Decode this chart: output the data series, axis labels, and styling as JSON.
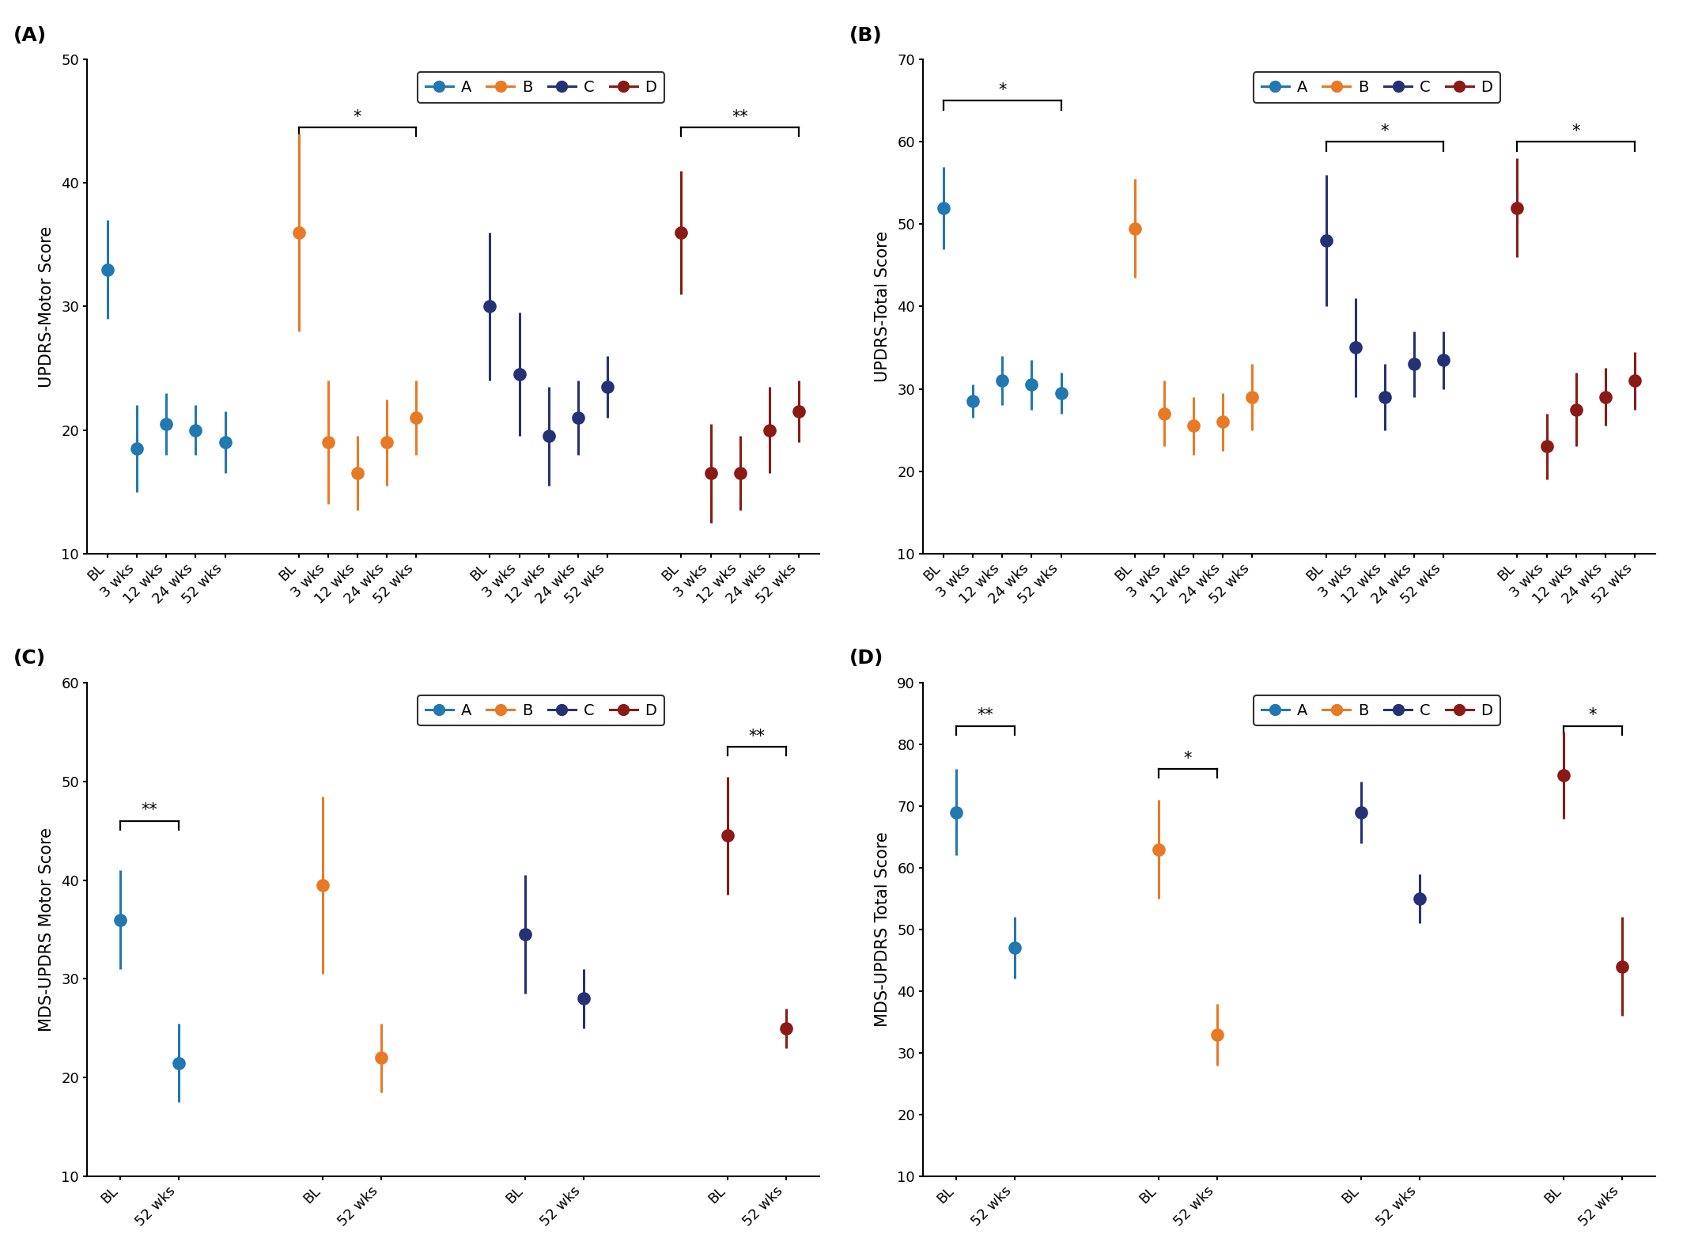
{
  "colors": {
    "A": "#2278b0",
    "B": "#e87a26",
    "C": "#263175",
    "D": "#8b1a14"
  },
  "panel_A": {
    "title": "(A)",
    "ylabel": "UPDRS-Motor Score",
    "ylim": [
      10,
      50
    ],
    "yticks": [
      10,
      20,
      30,
      40,
      50
    ],
    "groups": [
      "A",
      "B",
      "C",
      "D"
    ],
    "xticklabels": [
      "BL",
      "3 wks",
      "12 wks",
      "24 wks",
      "52 wks"
    ],
    "data": {
      "A": {
        "mean": [
          33.0,
          18.5,
          20.5,
          20.0,
          19.0
        ],
        "err": [
          4.0,
          3.5,
          2.5,
          2.0,
          2.5
        ]
      },
      "B": {
        "mean": [
          36.0,
          19.0,
          16.5,
          19.0,
          21.0
        ],
        "err": [
          8.0,
          5.0,
          3.0,
          3.5,
          3.0
        ]
      },
      "C": {
        "mean": [
          30.0,
          24.5,
          19.5,
          21.0,
          23.5
        ],
        "err": [
          6.0,
          5.0,
          4.0,
          3.0,
          2.5
        ]
      },
      "D": {
        "mean": [
          36.0,
          16.5,
          16.5,
          20.0,
          21.5
        ],
        "err": [
          5.0,
          4.0,
          3.0,
          3.5,
          2.5
        ]
      }
    },
    "sig_brackets": [
      {
        "g": "B",
        "i1": 0,
        "i2": 4,
        "label": "*",
        "y": 44.5
      },
      {
        "g": "D",
        "i1": 0,
        "i2": 4,
        "label": "**",
        "y": 44.5
      }
    ]
  },
  "panel_B": {
    "title": "(B)",
    "ylabel": "UPDRS-Total Score",
    "ylim": [
      10,
      70
    ],
    "yticks": [
      10,
      20,
      30,
      40,
      50,
      60,
      70
    ],
    "groups": [
      "A",
      "B",
      "C",
      "D"
    ],
    "xticklabels": [
      "BL",
      "3 wks",
      "12 wks",
      "24 wks",
      "52 wks"
    ],
    "data": {
      "A": {
        "mean": [
          52.0,
          28.5,
          31.0,
          30.5,
          29.5
        ],
        "err": [
          5.0,
          2.0,
          3.0,
          3.0,
          2.5
        ]
      },
      "B": {
        "mean": [
          49.5,
          27.0,
          25.5,
          26.0,
          29.0
        ],
        "err": [
          6.0,
          4.0,
          3.5,
          3.5,
          4.0
        ]
      },
      "C": {
        "mean": [
          48.0,
          35.0,
          29.0,
          33.0,
          33.5
        ],
        "err": [
          8.0,
          6.0,
          4.0,
          4.0,
          3.5
        ]
      },
      "D": {
        "mean": [
          52.0,
          23.0,
          27.5,
          29.0,
          31.0
        ],
        "err": [
          6.0,
          4.0,
          4.5,
          3.5,
          3.5
        ]
      }
    },
    "sig_brackets": [
      {
        "g": "A",
        "i1": 0,
        "i2": 4,
        "label": "*",
        "y": 65.0
      },
      {
        "g": "C",
        "i1": 0,
        "i2": 4,
        "label": "*",
        "y": 60.0
      },
      {
        "g": "D",
        "i1": 0,
        "i2": 4,
        "label": "*",
        "y": 60.0
      }
    ]
  },
  "panel_C": {
    "title": "(C)",
    "ylabel": "MDS-UPDRS Motor Score",
    "ylim": [
      10,
      60
    ],
    "yticks": [
      10,
      20,
      30,
      40,
      50,
      60
    ],
    "groups": [
      "A",
      "B",
      "C",
      "D"
    ],
    "xticklabels": [
      "BL",
      "52 wks"
    ],
    "data": {
      "A": {
        "mean": [
          36.0,
          21.5
        ],
        "err": [
          5.0,
          4.0
        ]
      },
      "B": {
        "mean": [
          39.5,
          22.0
        ],
        "err": [
          9.0,
          3.5
        ]
      },
      "C": {
        "mean": [
          34.5,
          28.0
        ],
        "err": [
          6.0,
          3.0
        ]
      },
      "D": {
        "mean": [
          44.5,
          25.0
        ],
        "err": [
          6.0,
          2.0
        ]
      }
    },
    "sig_brackets": [
      {
        "g": "A",
        "i1": 0,
        "i2": 1,
        "label": "**",
        "y": 46.0
      },
      {
        "g": "D",
        "i1": 0,
        "i2": 1,
        "label": "**",
        "y": 53.5
      }
    ]
  },
  "panel_D": {
    "title": "(D)",
    "ylabel": "MDS-UPDRS Total Score",
    "ylim": [
      10,
      90
    ],
    "yticks": [
      10,
      20,
      30,
      40,
      50,
      60,
      70,
      80,
      90
    ],
    "groups": [
      "A",
      "B",
      "C",
      "D"
    ],
    "xticklabels": [
      "BL",
      "52 wks"
    ],
    "data": {
      "A": {
        "mean": [
          69.0,
          47.0
        ],
        "err": [
          7.0,
          5.0
        ]
      },
      "B": {
        "mean": [
          63.0,
          33.0
        ],
        "err": [
          8.0,
          5.0
        ]
      },
      "C": {
        "mean": [
          69.0,
          55.0
        ],
        "err": [
          5.0,
          4.0
        ]
      },
      "D": {
        "mean": [
          75.0,
          44.0
        ],
        "err": [
          7.0,
          8.0
        ]
      }
    },
    "sig_brackets": [
      {
        "g": "A",
        "i1": 0,
        "i2": 1,
        "label": "**",
        "y": 83.0
      },
      {
        "g": "B",
        "i1": 0,
        "i2": 1,
        "label": "*",
        "y": 76.0
      },
      {
        "g": "D",
        "i1": 0,
        "i2": 1,
        "label": "*",
        "y": 83.0
      }
    ]
  }
}
